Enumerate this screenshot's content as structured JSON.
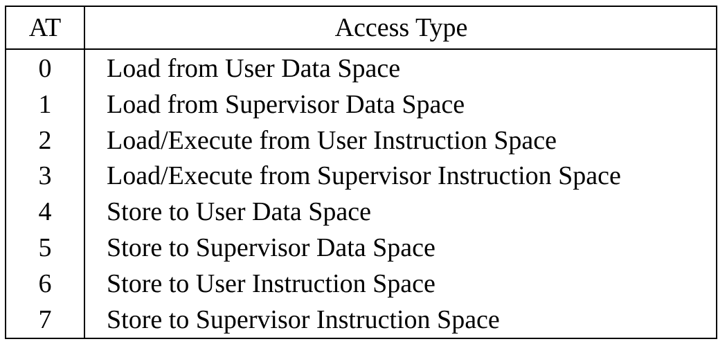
{
  "table": {
    "headers": {
      "at": "AT",
      "access_type": "Access Type"
    },
    "rows": [
      {
        "at": "0",
        "access_type": "Load from User Data Space"
      },
      {
        "at": "1",
        "access_type": "Load from Supervisor Data Space"
      },
      {
        "at": "2",
        "access_type": "Load/Execute from User Instruction Space"
      },
      {
        "at": "3",
        "access_type": "Load/Execute from Supervisor Instruction Space"
      },
      {
        "at": "4",
        "access_type": "Store to User Data Space"
      },
      {
        "at": "5",
        "access_type": "Store to Supervisor Data Space"
      },
      {
        "at": "6",
        "access_type": "Store to User Instruction Space"
      },
      {
        "at": "7",
        "access_type": "Store to Supervisor Instruction Space"
      }
    ]
  }
}
